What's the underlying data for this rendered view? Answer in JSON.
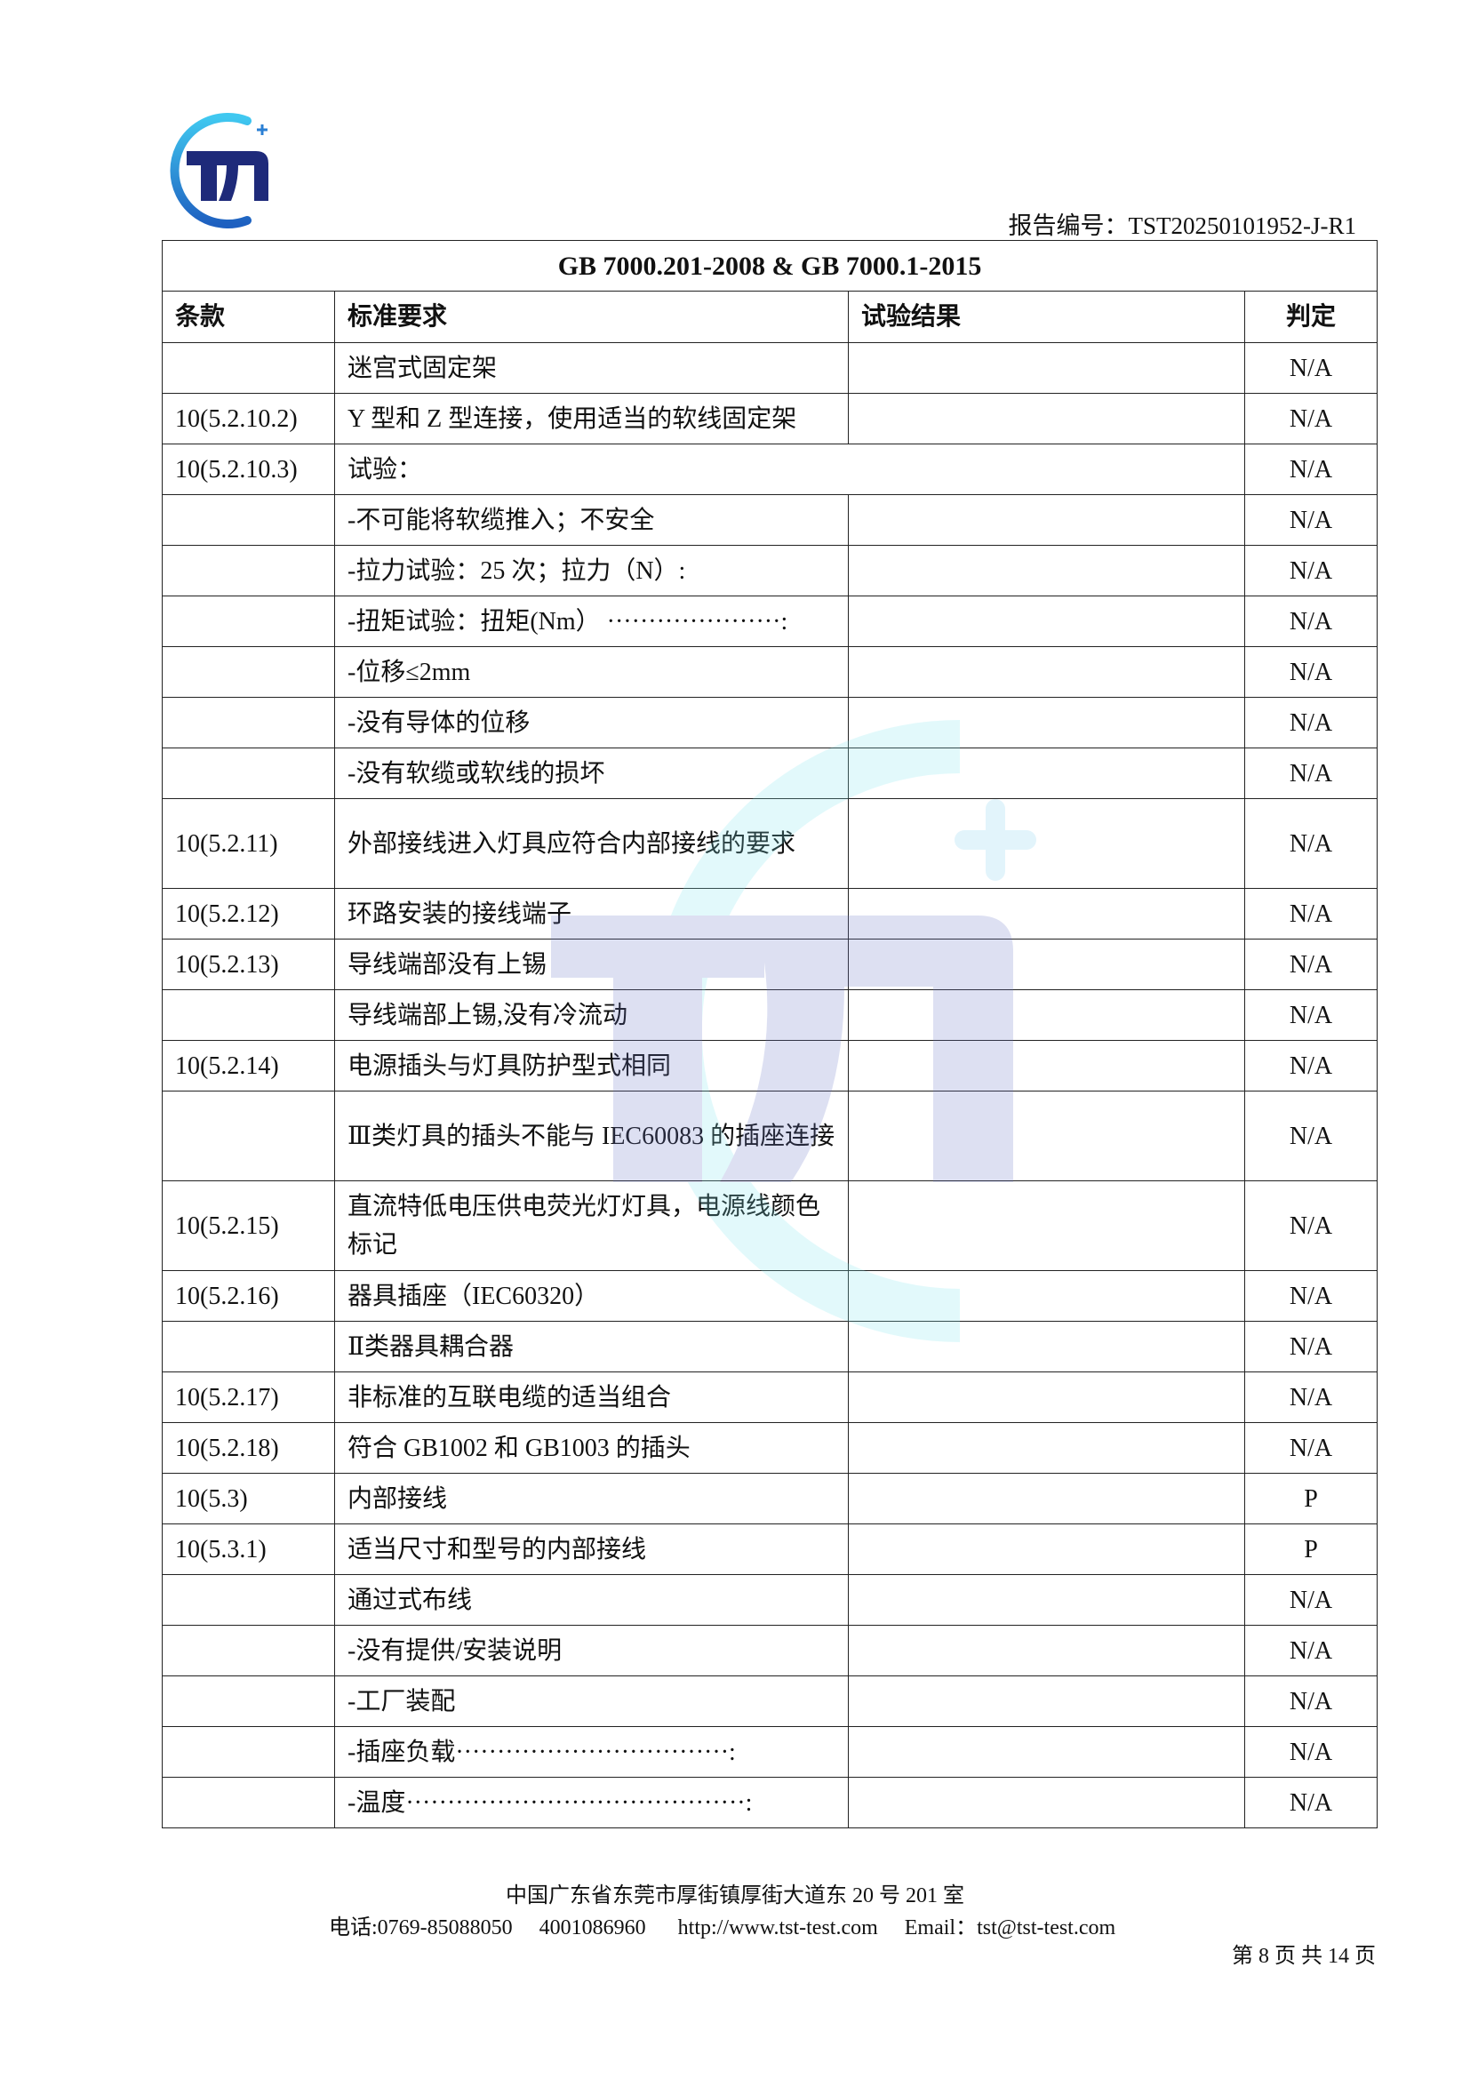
{
  "header": {
    "logo_text": "TST",
    "report_number": "报告编号：TST20250101952-J-R1"
  },
  "table": {
    "title": "GB 7000.201-2008 & GB 7000.1-2015",
    "columns": [
      "条款",
      "标准要求",
      "试验结果",
      "判定"
    ],
    "rows": [
      {
        "clause": "",
        "requirement": "迷宫式固定架",
        "result": "",
        "verdict": "N/A"
      },
      {
        "clause": "10(5.2.10.2)",
        "requirement": "Y 型和 Z 型连接，使用适当的软线固定架",
        "result": "",
        "verdict": "N/A"
      },
      {
        "clause": "10(5.2.10.3)",
        "requirement": "试验：",
        "result": "",
        "verdict": "N/A",
        "merged": true
      },
      {
        "clause": "",
        "requirement": "-不可能将软缆推入；不安全",
        "result": "",
        "verdict": "N/A"
      },
      {
        "clause": "",
        "requirement": "-拉力试验：25 次；拉力（N）:",
        "result": "",
        "verdict": "N/A"
      },
      {
        "clause": "",
        "requirement": "-扭矩试验：扭矩(Nm） ·····················:",
        "result": "",
        "verdict": "N/A"
      },
      {
        "clause": "",
        "requirement": "-位移≤2mm",
        "result": "",
        "verdict": "N/A"
      },
      {
        "clause": "",
        "requirement": "-没有导体的位移",
        "result": "",
        "verdict": "N/A"
      },
      {
        "clause": "",
        "requirement": "-没有软缆或软线的损坏",
        "result": "",
        "verdict": "N/A"
      },
      {
        "clause": "10(5.2.11)",
        "requirement": "外部接线进入灯具应符合内部接线的要求",
        "result": "",
        "verdict": "N/A",
        "tall": true
      },
      {
        "clause": "10(5.2.12)",
        "requirement": "环路安装的接线端子",
        "result": "",
        "verdict": "N/A"
      },
      {
        "clause": "10(5.2.13)",
        "requirement": "导线端部没有上锡",
        "result": "",
        "verdict": "N/A"
      },
      {
        "clause": "",
        "requirement": "导线端部上锡,没有冷流动",
        "result": "",
        "verdict": "N/A"
      },
      {
        "clause": "10(5.2.14)",
        "requirement": "电源插头与灯具防护型式相同",
        "result": "",
        "verdict": "N/A"
      },
      {
        "clause": "",
        "requirement": "Ⅲ类灯具的插头不能与 IEC60083 的插座连接",
        "result": "",
        "verdict": "N/A",
        "tall": true
      },
      {
        "clause": "10(5.2.15)",
        "requirement": "直流特低电压供电荧光灯灯具，电源线颜色标记",
        "result": "",
        "verdict": "N/A",
        "tall": true
      },
      {
        "clause": "10(5.2.16)",
        "requirement": "器具插座（IEC60320）",
        "result": "",
        "verdict": "N/A"
      },
      {
        "clause": "",
        "requirement": "Ⅱ类器具耦合器",
        "result": "",
        "verdict": "N/A"
      },
      {
        "clause": "10(5.2.17)",
        "requirement": "非标准的互联电缆的适当组合",
        "result": "",
        "verdict": "N/A"
      },
      {
        "clause": "10(5.2.18)",
        "requirement": "符合 GB1002  和 GB1003  的插头",
        "result": "",
        "verdict": "N/A"
      },
      {
        "clause": "10(5.3)",
        "requirement": "内部接线",
        "result": "",
        "verdict": "P"
      },
      {
        "clause": "10(5.3.1)",
        "requirement": "适当尺寸和型号的内部接线",
        "result": "",
        "verdict": "P"
      },
      {
        "clause": "",
        "requirement": "通过式布线",
        "result": "",
        "verdict": "N/A"
      },
      {
        "clause": "",
        "requirement": "-没有提供/安装说明",
        "result": "",
        "verdict": "N/A"
      },
      {
        "clause": "",
        "requirement": "-工厂装配",
        "result": "",
        "verdict": "N/A"
      },
      {
        "clause": "",
        "requirement": "-插座负载·································:",
        "result": "",
        "verdict": "N/A"
      },
      {
        "clause": "",
        "requirement": "-温度·········································:",
        "result": "",
        "verdict": "N/A"
      }
    ]
  },
  "footer": {
    "address": "中国广东省东莞市厚街镇厚街大道东 20 号 201 室",
    "phone": "电话:0769-85088050",
    "hotline": "4001086960",
    "website": "http://www.tst-test.com",
    "email": "Email：tst@tst-test.com",
    "page": "第 8 页 共 14 页"
  },
  "colors": {
    "logo_navy": "#1e2a7a",
    "logo_blue": "#2a7fd4",
    "logo_cyan": "#40c8f0"
  }
}
